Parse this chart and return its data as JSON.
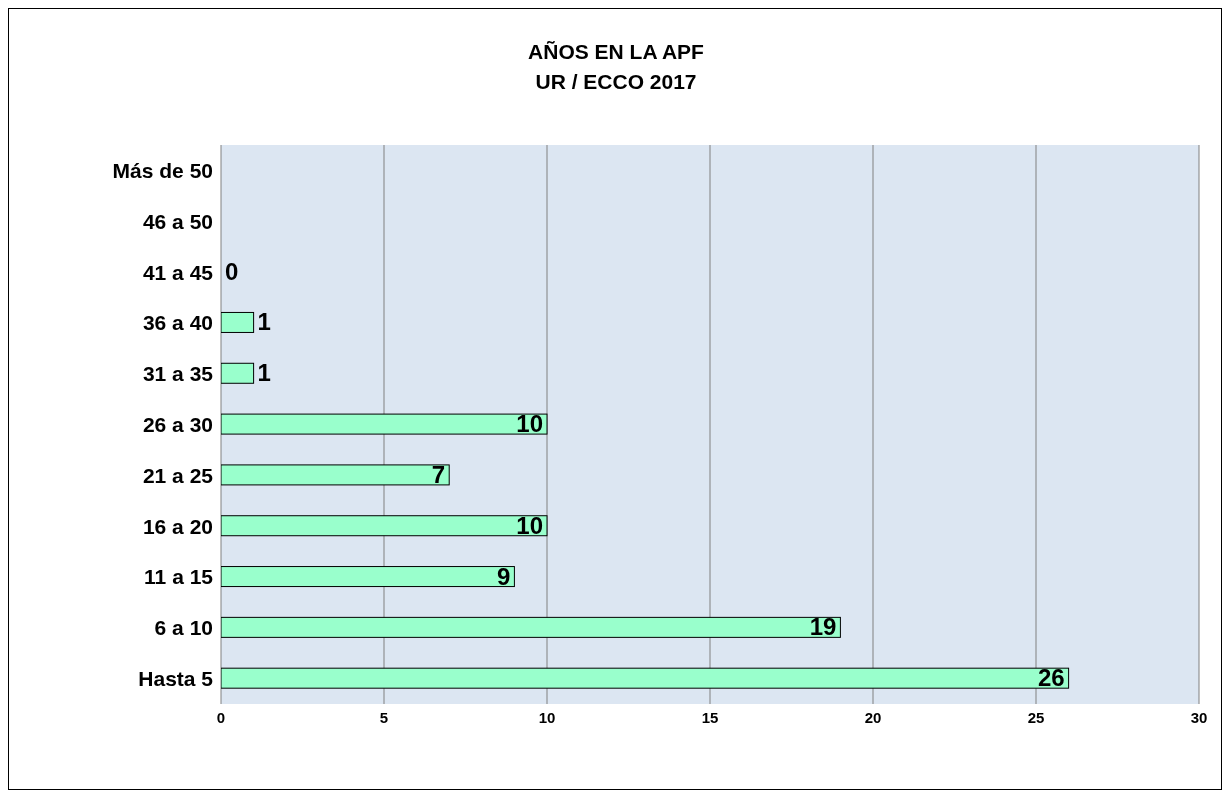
{
  "chart_data": {
    "type": "bar",
    "orientation": "horizontal",
    "title": "AÑOS EN LA APF",
    "subtitle": "UR / ECCO 2017",
    "categories": [
      "Más de 50",
      "46 a 50",
      "41 a 45",
      "36 a 40",
      "31 a 35",
      "26 a 30",
      "21 a 25",
      "16 a 20",
      "11 a 15",
      "6 a 10",
      "Hasta 5"
    ],
    "values": [
      null,
      null,
      0,
      1,
      1,
      10,
      7,
      10,
      9,
      19,
      26
    ],
    "value_labels": [
      null,
      null,
      "0",
      "1",
      "1",
      "10",
      "7",
      "10",
      "9",
      "19",
      "26"
    ],
    "color": "#99ffcc",
    "xlim": [
      0,
      30
    ],
    "xticks": [
      0,
      5,
      10,
      15,
      20,
      25,
      30
    ],
    "grid": "x"
  }
}
